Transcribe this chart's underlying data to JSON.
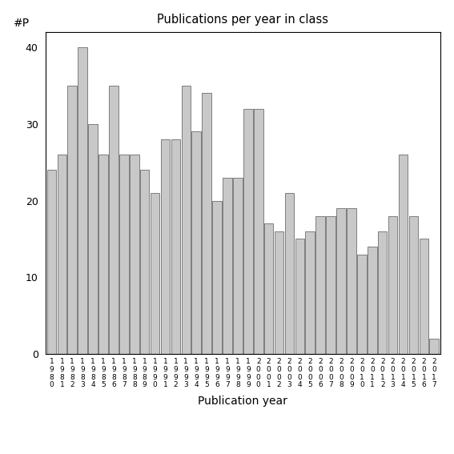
{
  "title": "Publications per year in class",
  "xlabel": "Publication year",
  "ylabel": "#P",
  "years": [
    1980,
    1981,
    1982,
    1983,
    1984,
    1985,
    1986,
    1987,
    1988,
    1989,
    1990,
    1991,
    1992,
    1993,
    1994,
    1995,
    1996,
    1997,
    1998,
    1999,
    2000,
    2001,
    2002,
    2003,
    2004,
    2005,
    2006,
    2007,
    2008,
    2009,
    2010,
    2011,
    2012,
    2013,
    2014,
    2015,
    2016,
    2017
  ],
  "values": [
    24,
    26,
    35,
    40,
    30,
    26,
    35,
    26,
    26,
    24,
    21,
    28,
    28,
    35,
    29,
    34,
    20,
    23,
    23,
    32,
    32,
    17,
    16,
    21,
    15,
    16,
    18,
    18,
    19,
    19,
    13,
    14,
    16,
    18,
    26,
    18,
    15,
    2
  ],
  "bar_color": "#c8c8c8",
  "bar_edgecolor": "#555555",
  "ylim": [
    0,
    42
  ],
  "yticks": [
    0,
    10,
    20,
    30,
    40
  ],
  "background_color": "#ffffff",
  "figsize": [
    5.67,
    5.67
  ],
  "dpi": 100
}
